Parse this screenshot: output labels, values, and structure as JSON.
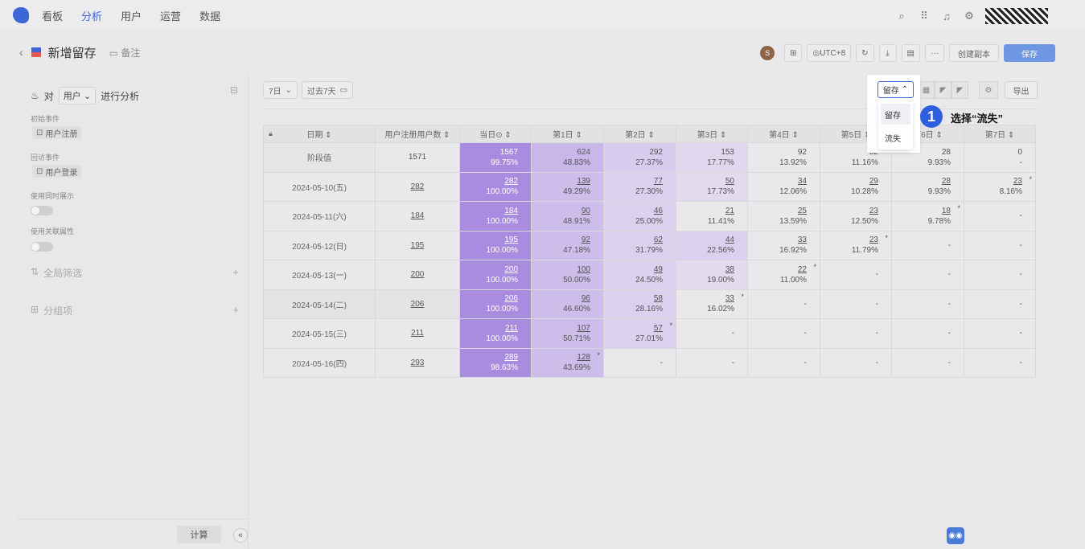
{
  "nav": {
    "items": [
      "看板",
      "分析",
      "用户",
      "运营",
      "数据"
    ],
    "active_index": 1
  },
  "header": {
    "back": "‹",
    "title": "新增留存",
    "note": "备注",
    "avatar": "S",
    "timezone": "UTC+8",
    "more": "···",
    "copy_label": "创建副本",
    "save_label": "保存"
  },
  "left": {
    "head_prefix": "对",
    "head_select": "用户",
    "head_suffix": "进行分析",
    "initial_event_label": "初始事件",
    "initial_event": "用户注册",
    "return_event_label": "回访事件",
    "return_event": "用户登录",
    "show_simultaneous_label": "使用同时展示",
    "assoc_attr_label": "使用关联属性",
    "global_filter": "全局筛选",
    "group_by": "分组项",
    "calc_label": "计算",
    "collapse": "«"
  },
  "filters": {
    "period": "7日",
    "range": "过去7天"
  },
  "toolbar": {
    "export": "导出"
  },
  "dropdown": {
    "current": "留存",
    "options": [
      "留存",
      "流失"
    ]
  },
  "annotation": {
    "step": "1",
    "text": "选择“流失”"
  },
  "table": {
    "headers": [
      "日期",
      "用户注册用户数",
      "当日",
      "第1日",
      "第2日",
      "第3日",
      "第4日",
      "第5日",
      "第6日",
      "第7日"
    ],
    "rows": [
      {
        "date": "阶段值",
        "users": "1571",
        "cells": [
          [
            "1567",
            "99.75%"
          ],
          [
            "624",
            "48.83%"
          ],
          [
            "292",
            "27.37%"
          ],
          [
            "153",
            "17.77%"
          ],
          [
            "92",
            "13.92%"
          ],
          [
            "52",
            "11.16%"
          ],
          [
            "28",
            "9.93%"
          ],
          [
            "0",
            "-"
          ]
        ]
      },
      {
        "date": "2024-05-10(五)",
        "users": "282",
        "cells": [
          [
            "282",
            "100.00%"
          ],
          [
            "139",
            "49.29%"
          ],
          [
            "77",
            "27.30%"
          ],
          [
            "50",
            "17.73%"
          ],
          [
            "34",
            "12.06%"
          ],
          [
            "29",
            "10.28%"
          ],
          [
            "28",
            "9.93%"
          ],
          [
            "23",
            "8.16%"
          ]
        ],
        "star": 7
      },
      {
        "date": "2024-05-11(六)",
        "users": "184",
        "cells": [
          [
            "184",
            "100.00%"
          ],
          [
            "90",
            "48.91%"
          ],
          [
            "46",
            "25.00%"
          ],
          [
            "21",
            "11.41%"
          ],
          [
            "25",
            "13.59%"
          ],
          [
            "23",
            "12.50%"
          ],
          [
            "18",
            "9.78%"
          ],
          [
            "-",
            ""
          ]
        ],
        "star": 6
      },
      {
        "date": "2024-05-12(日)",
        "users": "195",
        "cells": [
          [
            "195",
            "100.00%"
          ],
          [
            "92",
            "47.18%"
          ],
          [
            "62",
            "31.79%"
          ],
          [
            "44",
            "22.56%"
          ],
          [
            "33",
            "16.92%"
          ],
          [
            "23",
            "11.79%"
          ],
          [
            "-",
            ""
          ],
          [
            "-",
            ""
          ]
        ],
        "star": 5
      },
      {
        "date": "2024-05-13(一)",
        "users": "200",
        "cells": [
          [
            "200",
            "100.00%"
          ],
          [
            "100",
            "50.00%"
          ],
          [
            "49",
            "24.50%"
          ],
          [
            "38",
            "19.00%"
          ],
          [
            "22",
            "11.00%"
          ],
          [
            "-",
            ""
          ],
          [
            "-",
            ""
          ],
          [
            "-",
            ""
          ]
        ],
        "star": 4
      },
      {
        "date": "2024-05-14(二)",
        "users": "206",
        "cells": [
          [
            "206",
            "100.00%"
          ],
          [
            "96",
            "46.60%"
          ],
          [
            "58",
            "28.16%"
          ],
          [
            "33",
            "16.02%"
          ],
          [
            "-",
            ""
          ],
          [
            "-",
            ""
          ],
          [
            "-",
            ""
          ],
          [
            "-",
            ""
          ]
        ],
        "star": 3
      },
      {
        "date": "2024-05-15(三)",
        "users": "211",
        "cells": [
          [
            "211",
            "100.00%"
          ],
          [
            "107",
            "50.71%"
          ],
          [
            "57",
            "27.01%"
          ],
          [
            "-",
            ""
          ],
          [
            "-",
            ""
          ],
          [
            "-",
            ""
          ],
          [
            "-",
            ""
          ],
          [
            "-",
            ""
          ]
        ],
        "star": 2
      },
      {
        "date": "2024-05-16(四)",
        "users": "293",
        "cells": [
          [
            "289",
            "98.63%"
          ],
          [
            "128",
            "43.69%"
          ],
          [
            "-",
            ""
          ],
          [
            "-",
            ""
          ],
          [
            "-",
            ""
          ],
          [
            "-",
            ""
          ],
          [
            "-",
            ""
          ],
          [
            "-",
            ""
          ]
        ],
        "star": 1
      }
    ]
  }
}
